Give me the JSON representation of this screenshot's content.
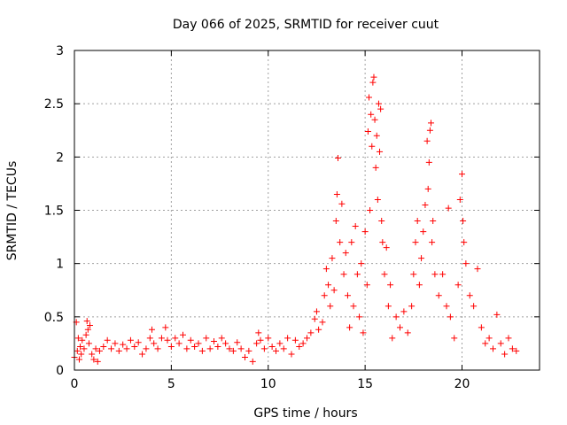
{
  "chart_data": {
    "type": "scatter",
    "title": "Day 066 of 2025, SRMTID for receiver cuut",
    "xlabel": "GPS time / hours",
    "ylabel": "SRMTID / TECUs",
    "xlim": [
      0,
      24.0
    ],
    "ylim": [
      0,
      3
    ],
    "x_ticks": [
      0,
      5,
      10,
      15,
      20
    ],
    "y_ticks": [
      0,
      0.5,
      1,
      1.5,
      2,
      2.5,
      3
    ],
    "x_tick_labels": [
      "0",
      "5",
      "10",
      "15",
      "20"
    ],
    "y_tick_labels": [
      "0",
      "0.5",
      "1",
      "1.5",
      "2",
      "2.5",
      "3"
    ],
    "grid": true,
    "marker": "+",
    "series_color": "#ff0000",
    "series": [
      {
        "name": "SRMTID",
        "points": [
          [
            0.0,
            0.12
          ],
          [
            0.1,
            0.45
          ],
          [
            0.15,
            0.18
          ],
          [
            0.2,
            0.3
          ],
          [
            0.25,
            0.1
          ],
          [
            0.3,
            0.22
          ],
          [
            0.35,
            0.15
          ],
          [
            0.4,
            0.28
          ],
          [
            0.5,
            0.2
          ],
          [
            0.6,
            0.33
          ],
          [
            0.65,
            0.46
          ],
          [
            0.7,
            0.38
          ],
          [
            0.75,
            0.25
          ],
          [
            0.8,
            0.42
          ],
          [
            0.9,
            0.15
          ],
          [
            1.0,
            0.1
          ],
          [
            1.1,
            0.2
          ],
          [
            1.2,
            0.08
          ],
          [
            1.3,
            0.18
          ],
          [
            1.5,
            0.22
          ],
          [
            1.7,
            0.28
          ],
          [
            1.9,
            0.2
          ],
          [
            2.1,
            0.25
          ],
          [
            2.3,
            0.18
          ],
          [
            2.5,
            0.24
          ],
          [
            2.7,
            0.2
          ],
          [
            2.9,
            0.28
          ],
          [
            3.1,
            0.22
          ],
          [
            3.3,
            0.26
          ],
          [
            3.5,
            0.15
          ],
          [
            3.7,
            0.2
          ],
          [
            3.9,
            0.3
          ],
          [
            4.0,
            0.38
          ],
          [
            4.1,
            0.25
          ],
          [
            4.3,
            0.2
          ],
          [
            4.5,
            0.3
          ],
          [
            4.7,
            0.4
          ],
          [
            4.8,
            0.28
          ],
          [
            5.0,
            0.22
          ],
          [
            5.2,
            0.3
          ],
          [
            5.4,
            0.25
          ],
          [
            5.6,
            0.33
          ],
          [
            5.8,
            0.2
          ],
          [
            6.0,
            0.28
          ],
          [
            6.2,
            0.22
          ],
          [
            6.4,
            0.25
          ],
          [
            6.6,
            0.18
          ],
          [
            6.8,
            0.3
          ],
          [
            7.0,
            0.2
          ],
          [
            7.2,
            0.27
          ],
          [
            7.4,
            0.22
          ],
          [
            7.6,
            0.3
          ],
          [
            7.8,
            0.25
          ],
          [
            8.0,
            0.2
          ],
          [
            8.2,
            0.18
          ],
          [
            8.4,
            0.26
          ],
          [
            8.6,
            0.2
          ],
          [
            8.8,
            0.12
          ],
          [
            9.0,
            0.18
          ],
          [
            9.2,
            0.08
          ],
          [
            9.4,
            0.25
          ],
          [
            9.5,
            0.35
          ],
          [
            9.6,
            0.28
          ],
          [
            9.8,
            0.2
          ],
          [
            10.0,
            0.3
          ],
          [
            10.2,
            0.22
          ],
          [
            10.4,
            0.18
          ],
          [
            10.6,
            0.25
          ],
          [
            10.8,
            0.2
          ],
          [
            11.0,
            0.3
          ],
          [
            11.2,
            0.15
          ],
          [
            11.4,
            0.28
          ],
          [
            11.6,
            0.22
          ],
          [
            11.8,
            0.25
          ],
          [
            12.0,
            0.3
          ],
          [
            12.2,
            0.35
          ],
          [
            12.4,
            0.48
          ],
          [
            12.5,
            0.55
          ],
          [
            12.6,
            0.38
          ],
          [
            12.8,
            0.45
          ],
          [
            12.9,
            0.7
          ],
          [
            13.0,
            0.95
          ],
          [
            13.1,
            0.8
          ],
          [
            13.2,
            0.6
          ],
          [
            13.3,
            1.05
          ],
          [
            13.4,
            0.75
          ],
          [
            13.5,
            1.4
          ],
          [
            13.55,
            1.65
          ],
          [
            13.6,
            1.99
          ],
          [
            13.7,
            1.2
          ],
          [
            13.8,
            1.56
          ],
          [
            13.9,
            0.9
          ],
          [
            14.0,
            1.1
          ],
          [
            14.1,
            0.7
          ],
          [
            14.2,
            0.4
          ],
          [
            14.3,
            1.2
          ],
          [
            14.4,
            0.6
          ],
          [
            14.5,
            1.35
          ],
          [
            14.6,
            0.9
          ],
          [
            14.7,
            0.5
          ],
          [
            14.8,
            1.0
          ],
          [
            14.9,
            0.35
          ],
          [
            15.0,
            1.3
          ],
          [
            15.1,
            0.8
          ],
          [
            15.15,
            2.24
          ],
          [
            15.2,
            2.56
          ],
          [
            15.25,
            1.5
          ],
          [
            15.3,
            2.4
          ],
          [
            15.35,
            2.1
          ],
          [
            15.4,
            2.7
          ],
          [
            15.45,
            2.75
          ],
          [
            15.5,
            2.35
          ],
          [
            15.55,
            1.9
          ],
          [
            15.6,
            2.2
          ],
          [
            15.65,
            1.6
          ],
          [
            15.7,
            2.5
          ],
          [
            15.75,
            2.05
          ],
          [
            15.8,
            2.45
          ],
          [
            15.85,
            1.4
          ],
          [
            15.9,
            1.2
          ],
          [
            16.0,
            0.9
          ],
          [
            16.1,
            1.15
          ],
          [
            16.2,
            0.6
          ],
          [
            16.3,
            0.8
          ],
          [
            16.4,
            0.3
          ],
          [
            16.6,
            0.5
          ],
          [
            16.8,
            0.4
          ],
          [
            17.0,
            0.55
          ],
          [
            17.2,
            0.35
          ],
          [
            17.4,
            0.6
          ],
          [
            17.5,
            0.9
          ],
          [
            17.6,
            1.2
          ],
          [
            17.7,
            1.4
          ],
          [
            17.8,
            0.8
          ],
          [
            17.9,
            1.05
          ],
          [
            18.0,
            1.3
          ],
          [
            18.1,
            1.55
          ],
          [
            18.2,
            2.15
          ],
          [
            18.25,
            1.7
          ],
          [
            18.3,
            1.95
          ],
          [
            18.35,
            2.25
          ],
          [
            18.4,
            2.32
          ],
          [
            18.45,
            1.2
          ],
          [
            18.5,
            1.4
          ],
          [
            18.6,
            0.9
          ],
          [
            18.8,
            0.7
          ],
          [
            19.0,
            0.9
          ],
          [
            19.2,
            0.6
          ],
          [
            19.3,
            1.52
          ],
          [
            19.4,
            0.5
          ],
          [
            19.6,
            0.3
          ],
          [
            19.8,
            0.8
          ],
          [
            19.9,
            1.6
          ],
          [
            20.0,
            1.84
          ],
          [
            20.05,
            1.4
          ],
          [
            20.1,
            1.2
          ],
          [
            20.2,
            1.0
          ],
          [
            20.4,
            0.7
          ],
          [
            20.6,
            0.6
          ],
          [
            20.8,
            0.95
          ],
          [
            21.0,
            0.4
          ],
          [
            21.2,
            0.25
          ],
          [
            21.4,
            0.3
          ],
          [
            21.6,
            0.2
          ],
          [
            21.8,
            0.52
          ],
          [
            22.0,
            0.25
          ],
          [
            22.2,
            0.15
          ],
          [
            22.4,
            0.3
          ],
          [
            22.6,
            0.2
          ],
          [
            22.8,
            0.18
          ]
        ]
      }
    ]
  }
}
